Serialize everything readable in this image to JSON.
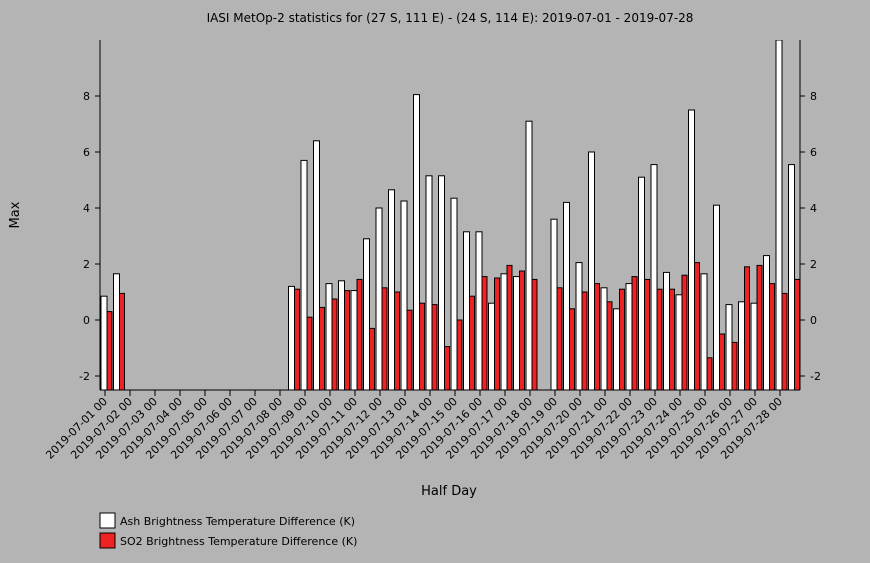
{
  "chart_data": {
    "type": "bar",
    "title": "IASI MetOp-2 statistics for (27 S, 111 E) - (24 S, 114 E): 2019-07-01 - 2019-07-28",
    "xlabel": "Half Day",
    "ylabel": "Max",
    "categories": [
      "2019-07-01 00",
      null,
      "2019-07-02 00",
      null,
      "2019-07-03 00",
      null,
      "2019-07-04 00",
      null,
      "2019-07-05 00",
      null,
      "2019-07-06 00",
      null,
      "2019-07-07 00",
      null,
      "2019-07-08 00",
      null,
      "2019-07-09 00",
      null,
      "2019-07-10 00",
      null,
      "2019-07-11 00",
      null,
      "2019-07-12 00",
      null,
      "2019-07-13 00",
      null,
      "2019-07-14 00",
      null,
      "2019-07-15 00",
      null,
      "2019-07-16 00",
      null,
      "2019-07-17 00",
      null,
      "2019-07-18 00",
      null,
      "2019-07-19 00",
      null,
      "2019-07-20 00",
      null,
      "2019-07-21 00",
      null,
      "2019-07-22 00",
      null,
      "2019-07-23 00",
      null,
      "2019-07-24 00",
      null,
      "2019-07-25 00",
      null,
      "2019-07-26 00",
      null,
      "2019-07-27 00",
      null,
      "2019-07-28 00",
      null
    ],
    "series": [
      {
        "name": "Ash Brightness Temperature Difference (K)",
        "color": "#ffffff",
        "values": [
          0.85,
          1.65,
          null,
          null,
          null,
          null,
          null,
          null,
          null,
          null,
          null,
          null,
          null,
          null,
          null,
          1.2,
          5.7,
          6.4,
          1.3,
          1.4,
          1.05,
          2.9,
          4.0,
          4.65,
          4.25,
          8.05,
          5.15,
          5.15,
          4.35,
          3.15,
          3.15,
          0.6,
          1.65,
          1.55,
          7.1,
          null,
          3.6,
          4.2,
          2.05,
          6.0,
          1.15,
          0.4,
          1.3,
          5.1,
          5.55,
          1.7,
          0.9,
          7.5,
          1.65,
          4.1,
          0.55,
          0.65,
          0.6,
          2.3,
          10,
          5.55
        ]
      },
      {
        "name": "SO2 Brightness Temperature Difference (K)",
        "color": "#ee2222",
        "values": [
          0.3,
          0.95,
          null,
          null,
          null,
          null,
          null,
          null,
          null,
          null,
          null,
          null,
          null,
          null,
          null,
          1.1,
          0.1,
          0.45,
          0.75,
          1.05,
          1.45,
          -0.3,
          1.15,
          1.0,
          0.35,
          0.6,
          0.55,
          -0.95,
          0.0,
          0.85,
          1.55,
          1.5,
          1.95,
          1.75,
          1.45,
          null,
          1.15,
          0.4,
          1.0,
          1.3,
          0.65,
          1.1,
          1.55,
          1.45,
          1.1,
          1.1,
          1.6,
          2.05,
          -1.35,
          -0.5,
          -0.8,
          1.9,
          1.95,
          1.3,
          0.95,
          1.45
        ]
      }
    ],
    "ylim": [
      -2.5,
      10
    ],
    "yticks": [
      -2,
      0,
      2,
      4,
      6,
      8
    ]
  }
}
